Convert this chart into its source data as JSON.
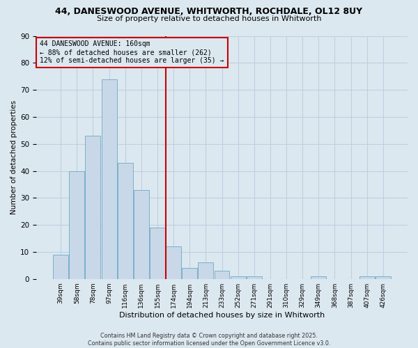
{
  "title_line1": "44, DANESWOOD AVENUE, WHITWORTH, ROCHDALE, OL12 8UY",
  "title_line2": "Size of property relative to detached houses in Whitworth",
  "xlabel": "Distribution of detached houses by size in Whitworth",
  "ylabel": "Number of detached properties",
  "categories": [
    "39sqm",
    "58sqm",
    "78sqm",
    "97sqm",
    "116sqm",
    "136sqm",
    "155sqm",
    "174sqm",
    "194sqm",
    "213sqm",
    "233sqm",
    "252sqm",
    "271sqm",
    "291sqm",
    "310sqm",
    "329sqm",
    "349sqm",
    "368sqm",
    "387sqm",
    "407sqm",
    "426sqm"
  ],
  "values": [
    9,
    40,
    53,
    74,
    43,
    33,
    19,
    12,
    4,
    6,
    3,
    1,
    1,
    0,
    0,
    0,
    1,
    0,
    0,
    1,
    1
  ],
  "bar_color": "#c8d8e8",
  "bar_edge_color": "#7ab0cc",
  "grid_color": "#c0cfe0",
  "bg_color": "#dce8f0",
  "annotation_box_color": "#cc0000",
  "vline_color": "#cc0000",
  "vline_x_index": 6,
  "annotation_text_line1": "44 DANESWOOD AVENUE: 160sqm",
  "annotation_text_line2": "← 88% of detached houses are smaller (262)",
  "annotation_text_line3": "12% of semi-detached houses are larger (35) →",
  "footer_line1": "Contains HM Land Registry data © Crown copyright and database right 2025.",
  "footer_line2": "Contains public sector information licensed under the Open Government Licence v3.0.",
  "ylim": [
    0,
    90
  ],
  "yticks": [
    0,
    10,
    20,
    30,
    40,
    50,
    60,
    70,
    80,
    90
  ]
}
